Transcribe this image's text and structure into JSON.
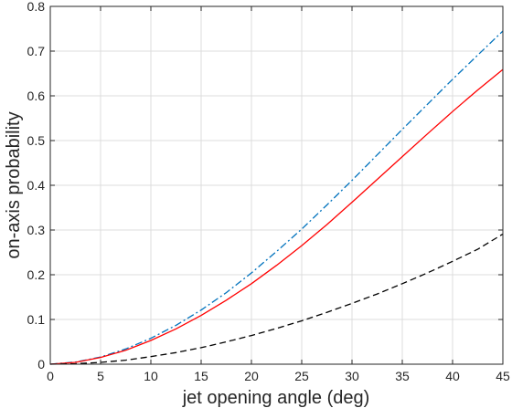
{
  "chart_data": {
    "type": "line",
    "title": "",
    "xlabel": "jet opening angle (deg)",
    "ylabel": "on-axis probability",
    "xlim": [
      0,
      45
    ],
    "ylim": [
      0,
      0.8
    ],
    "xticks": [
      0,
      5,
      10,
      15,
      20,
      25,
      30,
      35,
      40,
      45
    ],
    "xtick_labels": [
      "0",
      "5",
      "10",
      "15",
      "20",
      "25",
      "30",
      "35",
      "40",
      "45"
    ],
    "yticks": [
      0,
      0.1,
      0.2,
      0.3,
      0.4,
      0.5,
      0.6,
      0.7,
      0.8
    ],
    "ytick_labels": [
      "0",
      "0.1",
      "0.2",
      "0.3",
      "0.4",
      "0.5",
      "0.6",
      "0.7",
      "0.8"
    ],
    "grid": true,
    "legend": "none",
    "x": [
      0,
      2.5,
      5,
      7.5,
      10,
      12.5,
      15,
      17.5,
      20,
      22.5,
      25,
      27.5,
      30,
      32.5,
      35,
      37.5,
      40,
      42.5,
      45
    ],
    "series": [
      {
        "color": "#0072bd",
        "line_style": "dash-dot",
        "values": [
          0,
          0.005,
          0.016,
          0.034,
          0.058,
          0.087,
          0.121,
          0.16,
          0.204,
          0.252,
          0.302,
          0.356,
          0.411,
          0.468,
          0.525,
          0.581,
          0.637,
          0.691,
          0.745
        ]
      },
      {
        "color": "#ff0000",
        "line_style": "solid",
        "values": [
          0,
          0.004,
          0.015,
          0.031,
          0.053,
          0.079,
          0.109,
          0.143,
          0.18,
          0.221,
          0.265,
          0.312,
          0.362,
          0.413,
          0.464,
          0.515,
          0.565,
          0.613,
          0.659
        ]
      },
      {
        "color": "#000000",
        "line_style": "dashed",
        "values": [
          0,
          0.001,
          0.004,
          0.009,
          0.017,
          0.026,
          0.037,
          0.05,
          0.064,
          0.08,
          0.097,
          0.116,
          0.136,
          0.157,
          0.18,
          0.204,
          0.23,
          0.257,
          0.291
        ]
      }
    ]
  }
}
